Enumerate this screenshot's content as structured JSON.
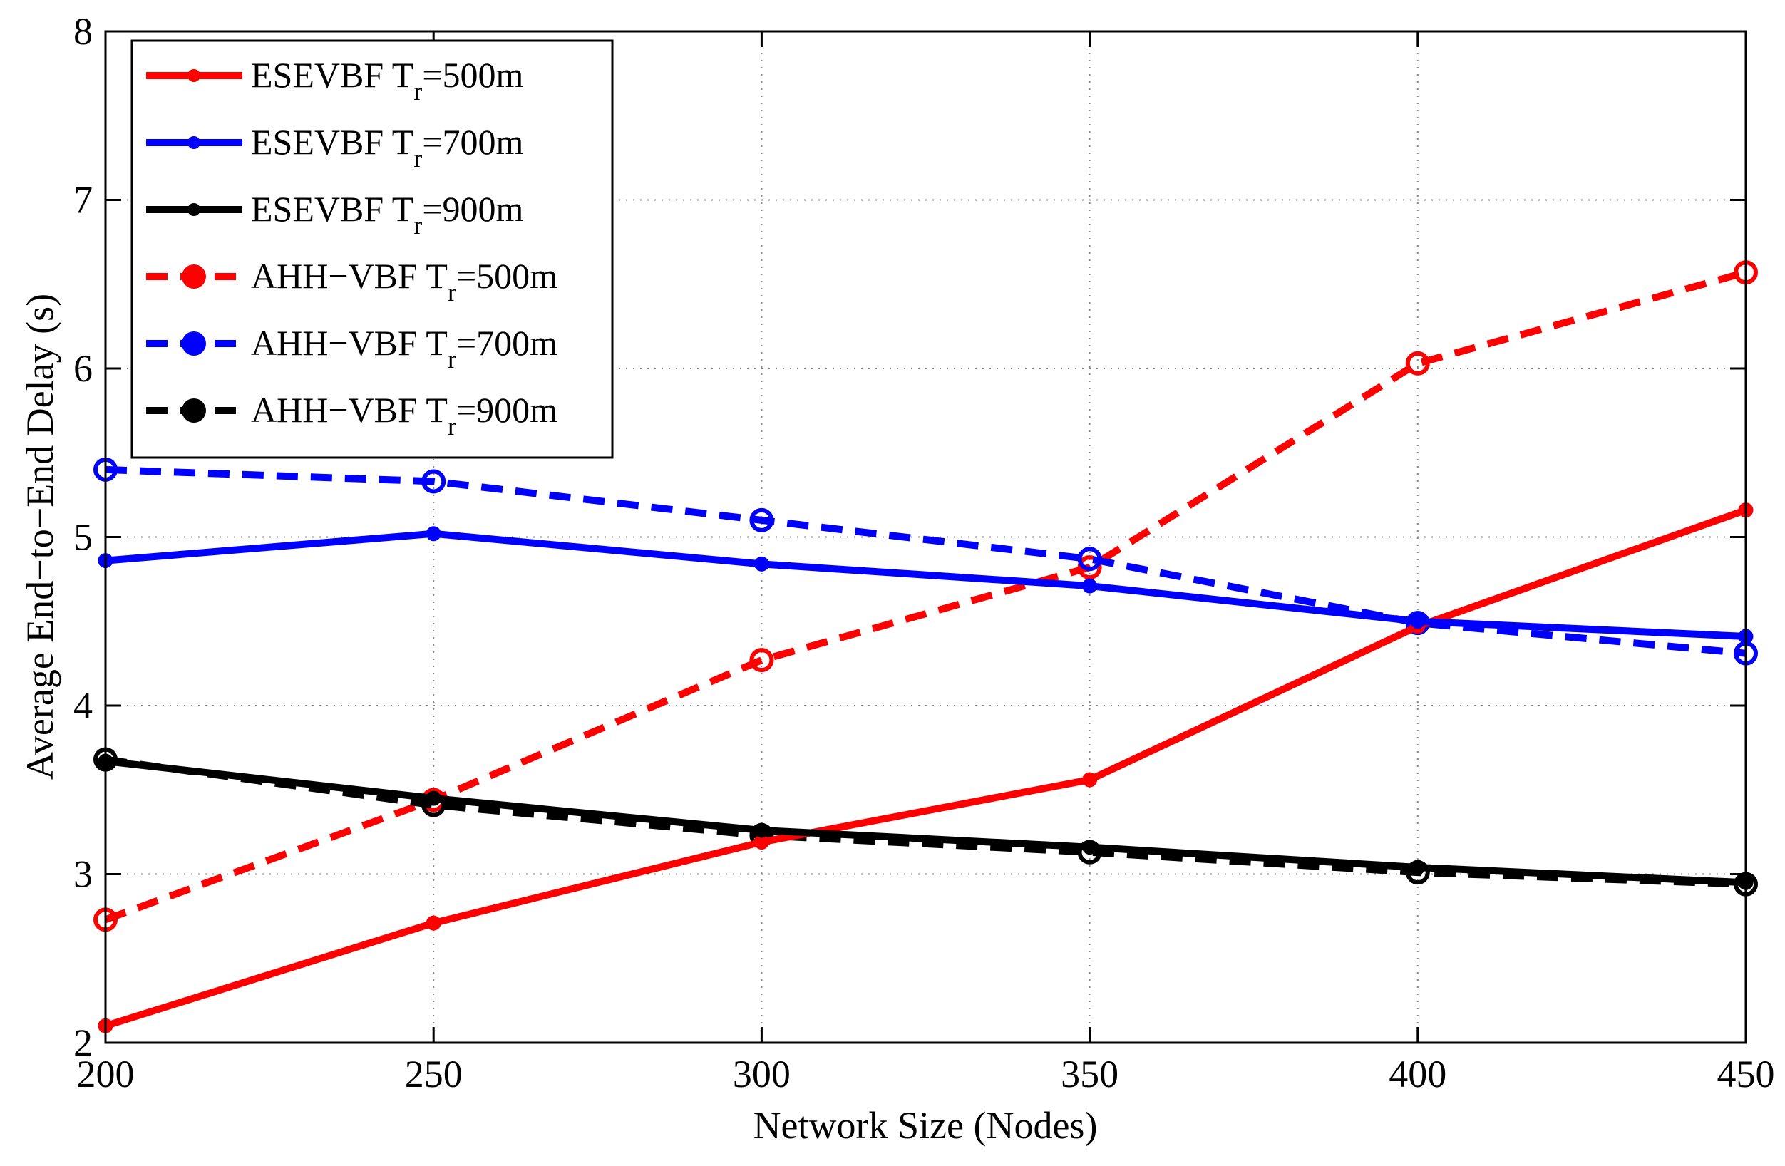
{
  "chart_data": {
    "type": "line",
    "title": "",
    "xlabel": "Network Size (Nodes)",
    "ylabel": "Average End−to−End Delay (s)",
    "x": [
      200,
      250,
      300,
      350,
      400,
      450
    ],
    "xlim": [
      200,
      450
    ],
    "ylim": [
      2,
      8
    ],
    "xticks": [
      "200",
      "250",
      "300",
      "350",
      "400",
      "450"
    ],
    "yticks": [
      "2",
      "3",
      "4",
      "5",
      "6",
      "7",
      "8"
    ],
    "grid": true,
    "legend_position": "top-left",
    "series": [
      {
        "name": "ESEVBF T_r=500m",
        "label_main": "ESEVBF T",
        "label_sub": "r",
        "label_tail": "=500m",
        "color": "#ff0000",
        "dashed": false,
        "marker": "dot",
        "values": [
          2.1,
          2.71,
          3.19,
          3.56,
          4.47,
          5.16
        ]
      },
      {
        "name": "ESEVBF T_r=700m",
        "label_main": "ESEVBF T",
        "label_sub": "r",
        "label_tail": "=700m",
        "color": "#0000ff",
        "dashed": false,
        "marker": "dot",
        "values": [
          4.86,
          5.02,
          4.84,
          4.71,
          4.5,
          4.41
        ]
      },
      {
        "name": "ESEVBF T_r=900m",
        "label_main": "ESEVBF T",
        "label_sub": "r",
        "label_tail": "=900m",
        "color": "#000000",
        "dashed": false,
        "marker": "dot",
        "values": [
          3.67,
          3.45,
          3.26,
          3.16,
          3.04,
          2.95
        ]
      },
      {
        "name": "AHH-VBF T_r=500m",
        "label_main": "AHH−VBF T",
        "label_sub": "r",
        "label_tail": "=500m",
        "color": "#ff0000",
        "dashed": true,
        "marker": "circle",
        "values": [
          2.73,
          3.44,
          4.27,
          4.82,
          6.03,
          6.57
        ]
      },
      {
        "name": "AHH-VBF T_r=700m",
        "label_main": "AHH−VBF T",
        "label_sub": "r",
        "label_tail": "=700m",
        "color": "#0000ff",
        "dashed": true,
        "marker": "circle",
        "values": [
          5.4,
          5.33,
          5.1,
          4.87,
          4.49,
          4.31
        ]
      },
      {
        "name": "AHH-VBF T_r=900m",
        "label_main": "AHH−VBF T",
        "label_sub": "r",
        "label_tail": "=900m",
        "color": "#000000",
        "dashed": true,
        "marker": "circle",
        "values": [
          3.68,
          3.41,
          3.23,
          3.13,
          3.01,
          2.94
        ]
      }
    ]
  }
}
